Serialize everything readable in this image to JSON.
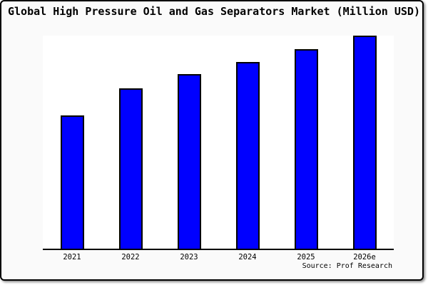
{
  "window": {
    "background_color": "#fafafa",
    "frame_border_color": "#000000",
    "plot_background_color": "#ffffff"
  },
  "chart_data": {
    "type": "bar",
    "title": "Global High Pressure Oil and Gas Separators Market (Million USD)",
    "unit_from_title": "Million USD",
    "categories": [
      "2021",
      "2022",
      "2023",
      "2024",
      "2025",
      "2026e"
    ],
    "values_pct_of_max": [
      62.7,
      75.3,
      81.8,
      87.7,
      93.8,
      100
    ],
    "value_axis_labels_visible": false,
    "grid": false,
    "bar_color": "#0000ff",
    "bar_border_color": "#000000",
    "axis_line_color": "#000000",
    "legend": null,
    "xlabel": "",
    "ylabel": "",
    "source": "Source: Prof Research"
  }
}
